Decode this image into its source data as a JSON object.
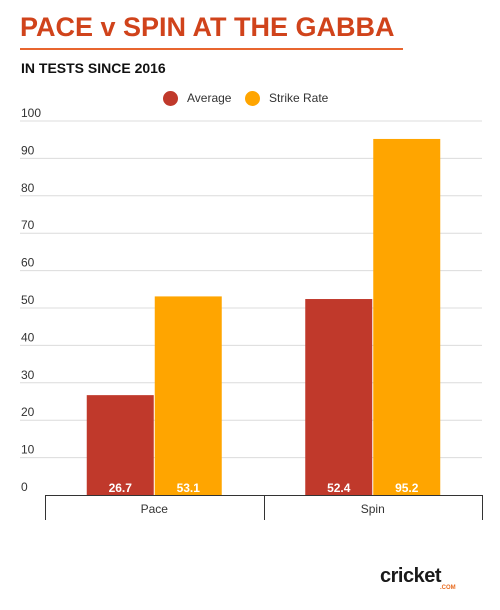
{
  "header": {
    "title": "PACE v SPIN AT THE GABBA",
    "subtitle": "IN TESTS SINCE 2016"
  },
  "colors": {
    "title": "#d0431b",
    "average": "#c0392b",
    "strike_rate": "#ffa500"
  },
  "logo": {
    "text": "cricket",
    "sub": ".COM"
  },
  "chart_data": {
    "type": "bar",
    "categories": [
      "Pace",
      "Spin"
    ],
    "series": [
      {
        "name": "Average",
        "values": [
          26.7,
          52.4
        ],
        "color": "#c0392b"
      },
      {
        "name": "Strike Rate",
        "values": [
          53.1,
          95.2
        ],
        "color": "#ffa500"
      }
    ],
    "yticks": [
      0,
      10,
      20,
      30,
      40,
      50,
      60,
      70,
      80,
      90,
      100
    ],
    "ylim": [
      0,
      100
    ],
    "title": "PACE v SPIN AT THE GABBA",
    "subtitle": "IN TESTS SINCE 2016",
    "grid": true,
    "legend": "top-center"
  }
}
